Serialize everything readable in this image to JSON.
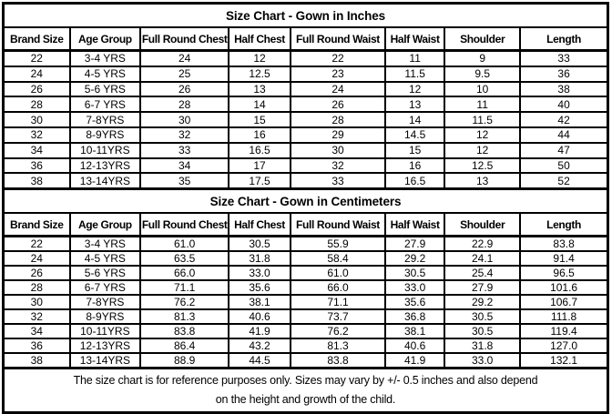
{
  "theme": {
    "background_color": "#ffffff",
    "border_color": "#000000",
    "text_color": "#000000"
  },
  "sections": [
    {
      "title": "Size Chart - Gown in Inches",
      "columns": [
        "Brand Size",
        "Age Group",
        "Full Round Chest",
        "Half Chest",
        "Full Round Waist",
        "Half Waist",
        "Shoulder",
        "Length"
      ],
      "rows": [
        [
          "22",
          "3-4 YRS",
          "24",
          "12",
          "22",
          "11",
          "9",
          "33"
        ],
        [
          "24",
          "4-5 YRS",
          "25",
          "12.5",
          "23",
          "11.5",
          "9.5",
          "36"
        ],
        [
          "26",
          "5-6 YRS",
          "26",
          "13",
          "24",
          "12",
          "10",
          "38"
        ],
        [
          "28",
          "6-7 YRS",
          "28",
          "14",
          "26",
          "13",
          "11",
          "40"
        ],
        [
          "30",
          "7-8YRS",
          "30",
          "15",
          "28",
          "14",
          "11.5",
          "42"
        ],
        [
          "32",
          "8-9YRS",
          "32",
          "16",
          "29",
          "14.5",
          "12",
          "44"
        ],
        [
          "34",
          "10-11YRS",
          "33",
          "16.5",
          "30",
          "15",
          "12",
          "47"
        ],
        [
          "36",
          "12-13YRS",
          "34",
          "17",
          "32",
          "16",
          "12.5",
          "50"
        ],
        [
          "38",
          "13-14YRS",
          "35",
          "17.5",
          "33",
          "16.5",
          "13",
          "52"
        ]
      ]
    },
    {
      "title": "Size Chart - Gown in Centimeters",
      "columns": [
        "Brand Size",
        "Age Group",
        "Full Round Chest",
        "Half Chest",
        "Full Round Waist",
        "Half Waist",
        "Shoulder",
        "Length"
      ],
      "rows": [
        [
          "22",
          "3-4 YRS",
          "61.0",
          "30.5",
          "55.9",
          "27.9",
          "22.9",
          "83.8"
        ],
        [
          "24",
          "4-5 YRS",
          "63.5",
          "31.8",
          "58.4",
          "29.2",
          "24.1",
          "91.4"
        ],
        [
          "26",
          "5-6 YRS",
          "66.0",
          "33.0",
          "61.0",
          "30.5",
          "25.4",
          "96.5"
        ],
        [
          "28",
          "6-7 YRS",
          "71.1",
          "35.6",
          "66.0",
          "33.0",
          "27.9",
          "101.6"
        ],
        [
          "30",
          "7-8YRS",
          "76.2",
          "38.1",
          "71.1",
          "35.6",
          "29.2",
          "106.7"
        ],
        [
          "32",
          "8-9YRS",
          "81.3",
          "40.6",
          "73.7",
          "36.8",
          "30.5",
          "111.8"
        ],
        [
          "34",
          "10-11YRS",
          "83.8",
          "41.9",
          "76.2",
          "38.1",
          "30.5",
          "119.4"
        ],
        [
          "36",
          "12-13YRS",
          "86.4",
          "43.2",
          "81.3",
          "40.6",
          "31.8",
          "127.0"
        ],
        [
          "38",
          "13-14YRS",
          "88.9",
          "44.5",
          "83.8",
          "41.9",
          "33.0",
          "132.1"
        ]
      ]
    }
  ],
  "footer": {
    "line1": "The size chart is for reference purposes only. Sizes may vary by +/- 0.5 inches and also depend",
    "line2": "on the height and growth of the child."
  }
}
